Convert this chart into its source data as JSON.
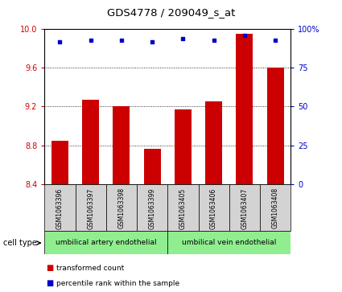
{
  "title": "GDS4778 / 209049_s_at",
  "samples": [
    "GSM1063396",
    "GSM1063397",
    "GSM1063398",
    "GSM1063399",
    "GSM1063405",
    "GSM1063406",
    "GSM1063407",
    "GSM1063408"
  ],
  "transformed_counts": [
    8.85,
    9.27,
    9.2,
    8.76,
    9.17,
    9.25,
    9.95,
    9.6
  ],
  "percentile_ranks": [
    92,
    93,
    93,
    92,
    94,
    93,
    96,
    93
  ],
  "ylim_left": [
    8.4,
    10.0
  ],
  "ylim_right": [
    0,
    100
  ],
  "yticks_left": [
    8.4,
    8.8,
    9.2,
    9.6,
    10.0
  ],
  "yticks_right": [
    0,
    25,
    50,
    75,
    100
  ],
  "bar_color": "#cc0000",
  "dot_color": "#0000cc",
  "group1_label": "umbilical artery endothelial",
  "group2_label": "umbilical vein endothelial",
  "group_bg_color": "#90ee90",
  "sample_bg_color": "#d3d3d3",
  "cell_type_label": "cell type",
  "legend_bar_label": "transformed count",
  "legend_dot_label": "percentile rank within the sample"
}
